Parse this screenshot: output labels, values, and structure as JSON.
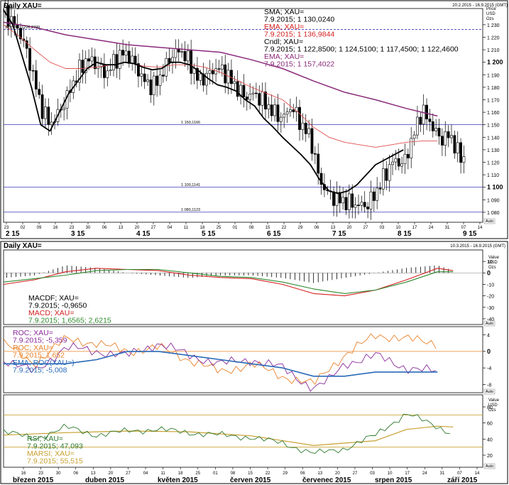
{
  "chart_data": [
    {
      "type": "candlestick",
      "title": "Daily XAU=",
      "date_range": "20.2.2015 - 16.9.2015 (GMT)",
      "unit_label": [
        "Price",
        "USD",
        "Ozs"
      ],
      "ylim": [
        1072,
        1243
      ],
      "yticks": [
        1080,
        1090,
        1100,
        1110,
        1120,
        1130,
        1140,
        1150,
        1160,
        1170,
        1180,
        1190,
        1200,
        1210,
        1220,
        1230
      ],
      "major_ytick": [
        1100,
        1200
      ],
      "hlines": [
        {
          "value": 1226.2799,
          "label": "161,8% ; 1226,2799",
          "color": "#3a3ab8",
          "dashed": true
        },
        {
          "value": 1150.1166,
          "label": "1 150,1166",
          "color": "#3a3ab8"
        },
        {
          "value": 1100.1141,
          "label": "1 100,1141",
          "color": "#3a3ab8"
        },
        {
          "value": 1080.1123,
          "label": "1 080,1123",
          "color": "#3a3ab8"
        }
      ],
      "legend": [
        {
          "name": "SMA; XAU=",
          "value": "7.9.2015; 1 130,0240",
          "color": "#000000"
        },
        {
          "name": "EMA; XAU=",
          "value": "7.9.2015; 1 136,9844",
          "color": "#d42020"
        },
        {
          "name": "Cndl; XAU=",
          "value": "7.9.2015; 1 122,8500; 1 124,5100; 1 117,4500; 1 122,4600",
          "color": "#000000"
        },
        {
          "name": "EMA; XAU=",
          "value": "7.9.2015; 1 157,4022",
          "color": "#8a2a7a"
        }
      ],
      "x_ticks": [
        "23",
        "02",
        "09",
        "16",
        "23",
        "30",
        "06",
        "13",
        "20",
        "27",
        "04",
        "11",
        "18",
        "25",
        "01",
        "08",
        "15",
        "22",
        "29",
        "06",
        "13",
        "20",
        "27",
        "03",
        "10",
        "17",
        "24",
        "31",
        "07",
        "14"
      ],
      "x_months": [
        "2 15",
        "3 15",
        "4 15",
        "5 15",
        "6 15",
        "7 15",
        "8 15",
        "9 15"
      ],
      "price_path": [
        [
          0,
          1240
        ],
        [
          6,
          1232
        ],
        [
          12,
          1220
        ],
        [
          18,
          1195
        ],
        [
          24,
          1165
        ],
        [
          30,
          1150
        ],
        [
          36,
          1160
        ],
        [
          42,
          1175
        ],
        [
          48,
          1192
        ],
        [
          54,
          1203
        ],
        [
          60,
          1198
        ],
        [
          66,
          1190
        ],
        [
          72,
          1202
        ],
        [
          78,
          1208
        ],
        [
          84,
          1200
        ],
        [
          90,
          1186
        ],
        [
          96,
          1180
        ],
        [
          102,
          1190
        ],
        [
          108,
          1205
        ],
        [
          114,
          1210
        ],
        [
          120,
          1200
        ],
        [
          126,
          1185
        ],
        [
          132,
          1190
        ],
        [
          138,
          1196
        ],
        [
          144,
          1190
        ],
        [
          150,
          1180
        ],
        [
          156,
          1172
        ],
        [
          162,
          1175
        ],
        [
          168,
          1168
        ],
        [
          174,
          1160
        ],
        [
          180,
          1155
        ],
        [
          186,
          1165
        ],
        [
          192,
          1150
        ],
        [
          198,
          1140
        ],
        [
          204,
          1105
        ],
        [
          210,
          1094
        ],
        [
          216,
          1090
        ],
        [
          222,
          1088
        ],
        [
          228,
          1086
        ],
        [
          234,
          1085
        ],
        [
          240,
          1095
        ],
        [
          246,
          1110
        ],
        [
          252,
          1122
        ],
        [
          258,
          1118
        ],
        [
          264,
          1140
        ],
        [
          270,
          1162
        ],
        [
          276,
          1150
        ],
        [
          282,
          1138
        ],
        [
          288,
          1142
        ],
        [
          294,
          1125
        ],
        [
          300,
          1122
        ]
      ],
      "sma_path": [
        [
          0,
          1242
        ],
        [
          6,
          1230
        ],
        [
          12,
          1205
        ],
        [
          18,
          1180
        ],
        [
          24,
          1150
        ],
        [
          30,
          1145
        ],
        [
          36,
          1160
        ],
        [
          42,
          1175
        ],
        [
          48,
          1185
        ],
        [
          54,
          1195
        ],
        [
          60,
          1200
        ],
        [
          66,
          1198
        ],
        [
          72,
          1198
        ],
        [
          78,
          1200
        ],
        [
          84,
          1199
        ],
        [
          90,
          1196
        ],
        [
          96,
          1194
        ],
        [
          102,
          1195
        ],
        [
          108,
          1200
        ],
        [
          114,
          1200
        ],
        [
          120,
          1198
        ],
        [
          126,
          1193
        ],
        [
          132,
          1187
        ],
        [
          138,
          1182
        ],
        [
          144,
          1180
        ],
        [
          150,
          1177
        ],
        [
          156,
          1170
        ],
        [
          162,
          1165
        ],
        [
          168,
          1155
        ],
        [
          174,
          1148
        ],
        [
          180,
          1140
        ],
        [
          186,
          1133
        ],
        [
          192,
          1126
        ],
        [
          198,
          1118
        ],
        [
          204,
          1106
        ],
        [
          210,
          1097
        ],
        [
          216,
          1095
        ],
        [
          222,
          1097
        ],
        [
          228,
          1102
        ],
        [
          234,
          1110
        ],
        [
          240,
          1118
        ],
        [
          246,
          1122
        ],
        [
          252,
          1126
        ],
        [
          258,
          1130
        ]
      ],
      "ema_red_path": [
        [
          0,
          1230
        ],
        [
          10,
          1221
        ],
        [
          20,
          1210
        ],
        [
          30,
          1200
        ],
        [
          40,
          1195
        ],
        [
          50,
          1195
        ],
        [
          60,
          1196
        ],
        [
          70,
          1198
        ],
        [
          80,
          1200
        ],
        [
          90,
          1197
        ],
        [
          100,
          1196
        ],
        [
          110,
          1198
        ],
        [
          120,
          1198
        ],
        [
          130,
          1196
        ],
        [
          140,
          1192
        ],
        [
          150,
          1186
        ],
        [
          160,
          1180
        ],
        [
          170,
          1175
        ],
        [
          180,
          1170
        ],
        [
          190,
          1160
        ],
        [
          200,
          1148
        ],
        [
          210,
          1140
        ],
        [
          220,
          1136
        ],
        [
          230,
          1134
        ],
        [
          240,
          1132
        ],
        [
          250,
          1134
        ],
        [
          260,
          1136
        ],
        [
          270,
          1137
        ],
        [
          280,
          1137
        ]
      ],
      "ema_purple_path": [
        [
          0,
          1232
        ],
        [
          20,
          1228
        ],
        [
          40,
          1222
        ],
        [
          60,
          1218
        ],
        [
          80,
          1214
        ],
        [
          100,
          1212
        ],
        [
          120,
          1210
        ],
        [
          140,
          1208
        ],
        [
          160,
          1202
        ],
        [
          180,
          1195
        ],
        [
          200,
          1185
        ],
        [
          220,
          1176
        ],
        [
          240,
          1170
        ],
        [
          260,
          1163
        ],
        [
          280,
          1157
        ]
      ]
    },
    {
      "type": "line",
      "title": "Daily XAU=",
      "date_range": "10.3.2015 - 16.9.2015 (GMT)",
      "unit_label": [
        "Value",
        "USD",
        "Ozs"
      ],
      "ylim": [
        -45,
        20
      ],
      "yticks": [
        -40,
        -30,
        -20,
        -10,
        0,
        10
      ],
      "major_ytick": [
        0
      ],
      "legend": [
        {
          "name": "MACDF; XAU=",
          "value": "7.9.2015; -0,9650",
          "color": "#000000"
        },
        {
          "name": "MACD; XAU=",
          "value": "7.9.2015; 1,6565; 2,6215",
          "color": "#d42020",
          "value_color": "#2e8a2e"
        }
      ],
      "macd_path": [
        [
          0,
          -10
        ],
        [
          20,
          -6
        ],
        [
          40,
          1
        ],
        [
          60,
          4
        ],
        [
          80,
          3
        ],
        [
          100,
          2
        ],
        [
          120,
          -2
        ],
        [
          140,
          -4
        ],
        [
          160,
          -5
        ],
        [
          180,
          -10
        ],
        [
          200,
          -18
        ],
        [
          220,
          -20
        ],
        [
          240,
          -15
        ],
        [
          260,
          -6
        ],
        [
          280,
          4
        ],
        [
          290,
          2
        ]
      ],
      "signal_path": [
        [
          0,
          -8
        ],
        [
          20,
          -5
        ],
        [
          40,
          -2
        ],
        [
          60,
          2
        ],
        [
          80,
          3
        ],
        [
          100,
          3
        ],
        [
          120,
          0
        ],
        [
          140,
          -3
        ],
        [
          160,
          -4
        ],
        [
          180,
          -8
        ],
        [
          200,
          -14
        ],
        [
          220,
          -18
        ],
        [
          240,
          -15
        ],
        [
          260,
          -8
        ],
        [
          280,
          1
        ],
        [
          290,
          1
        ]
      ]
    },
    {
      "type": "line",
      "ylim": [
        -10,
        6
      ],
      "yticks": [
        -8,
        -4,
        0,
        4
      ],
      "major_ytick": [
        0
      ],
      "legend": [
        {
          "name": "ROC; XAU=",
          "value": "7.9.2015; -5,359",
          "color": "#8a2a9a"
        },
        {
          "name": "ROC; XAU=",
          "value": "7.9.2015; 1,652",
          "color": "#e8822a"
        },
        {
          "name": "EMA; ROC(XAU=)",
          "value": "7.9.2015; -5,008",
          "color": "#2a6ab8"
        }
      ],
      "roc_purple_path": [
        [
          0,
          -2
        ],
        [
          20,
          -5
        ],
        [
          40,
          1
        ],
        [
          60,
          0
        ],
        [
          80,
          -1
        ],
        [
          100,
          2
        ],
        [
          120,
          -1
        ],
        [
          140,
          -3
        ],
        [
          160,
          -2
        ],
        [
          180,
          -4
        ],
        [
          200,
          -9
        ],
        [
          210,
          -7
        ],
        [
          220,
          -3
        ],
        [
          240,
          -1
        ],
        [
          260,
          -4
        ],
        [
          280,
          -5
        ]
      ],
      "roc_orange_path": [
        [
          0,
          2
        ],
        [
          20,
          -3
        ],
        [
          40,
          3
        ],
        [
          60,
          2
        ],
        [
          80,
          0
        ],
        [
          100,
          1
        ],
        [
          120,
          -2
        ],
        [
          140,
          -5
        ],
        [
          160,
          -3
        ],
        [
          180,
          -6
        ],
        [
          200,
          -8
        ],
        [
          210,
          -4
        ],
        [
          220,
          -1
        ],
        [
          240,
          4
        ],
        [
          260,
          3
        ],
        [
          280,
          2
        ]
      ],
      "ema_blue_path": [
        [
          0,
          -3
        ],
        [
          20,
          -3
        ],
        [
          40,
          -3
        ],
        [
          60,
          -2
        ],
        [
          80,
          0
        ],
        [
          100,
          0
        ],
        [
          120,
          -1
        ],
        [
          140,
          -2
        ],
        [
          160,
          -3
        ],
        [
          180,
          -4
        ],
        [
          200,
          -6
        ],
        [
          220,
          -6
        ],
        [
          240,
          -5
        ],
        [
          260,
          -5
        ],
        [
          280,
          -5
        ]
      ]
    },
    {
      "type": "line",
      "unit_label": [
        "Value",
        "USD",
        "Ozs"
      ],
      "ylim": [
        5,
        95
      ],
      "yticks": [
        20,
        40,
        60,
        80
      ],
      "hlines": [
        {
          "value": 70,
          "color": "#c8a030"
        },
        {
          "value": 30,
          "color": "#c8a030"
        }
      ],
      "legend": [
        {
          "name": "RSI; XAU=",
          "value": "7.9.2015; 47,093",
          "color": "#2e7a2e"
        },
        {
          "name": "MARSI; XAU=",
          "value": "7.9.2015; 55,515",
          "color": "#c8a030"
        }
      ],
      "rsi_path": [
        [
          0,
          50
        ],
        [
          20,
          40
        ],
        [
          40,
          55
        ],
        [
          60,
          45
        ],
        [
          80,
          50
        ],
        [
          100,
          52
        ],
        [
          120,
          48
        ],
        [
          140,
          45
        ],
        [
          160,
          42
        ],
        [
          180,
          35
        ],
        [
          200,
          22
        ],
        [
          220,
          28
        ],
        [
          240,
          45
        ],
        [
          260,
          72
        ],
        [
          280,
          55
        ],
        [
          290,
          47
        ]
      ],
      "marsi_path": [
        [
          0,
          45
        ],
        [
          40,
          48
        ],
        [
          80,
          50
        ],
        [
          120,
          49
        ],
        [
          160,
          44
        ],
        [
          200,
          32
        ],
        [
          240,
          38
        ],
        [
          260,
          52
        ],
        [
          280,
          56
        ],
        [
          290,
          55
        ]
      ],
      "x_ticks": [
        "16",
        "23",
        "30",
        "06",
        "13",
        "20",
        "27",
        "04",
        "11",
        "18",
        "25",
        "01",
        "08",
        "15",
        "22",
        "29",
        "06",
        "13",
        "20",
        "27",
        "03",
        "10",
        "17",
        "24",
        "31",
        "07",
        "14"
      ],
      "x_months": [
        "březen 2015",
        "duben 2015",
        "květen 2015",
        "červen 2015",
        "červenec 2015",
        "srpen 2015",
        "září 2015"
      ]
    }
  ],
  "controls": {
    "auto_label": "Auto"
  }
}
